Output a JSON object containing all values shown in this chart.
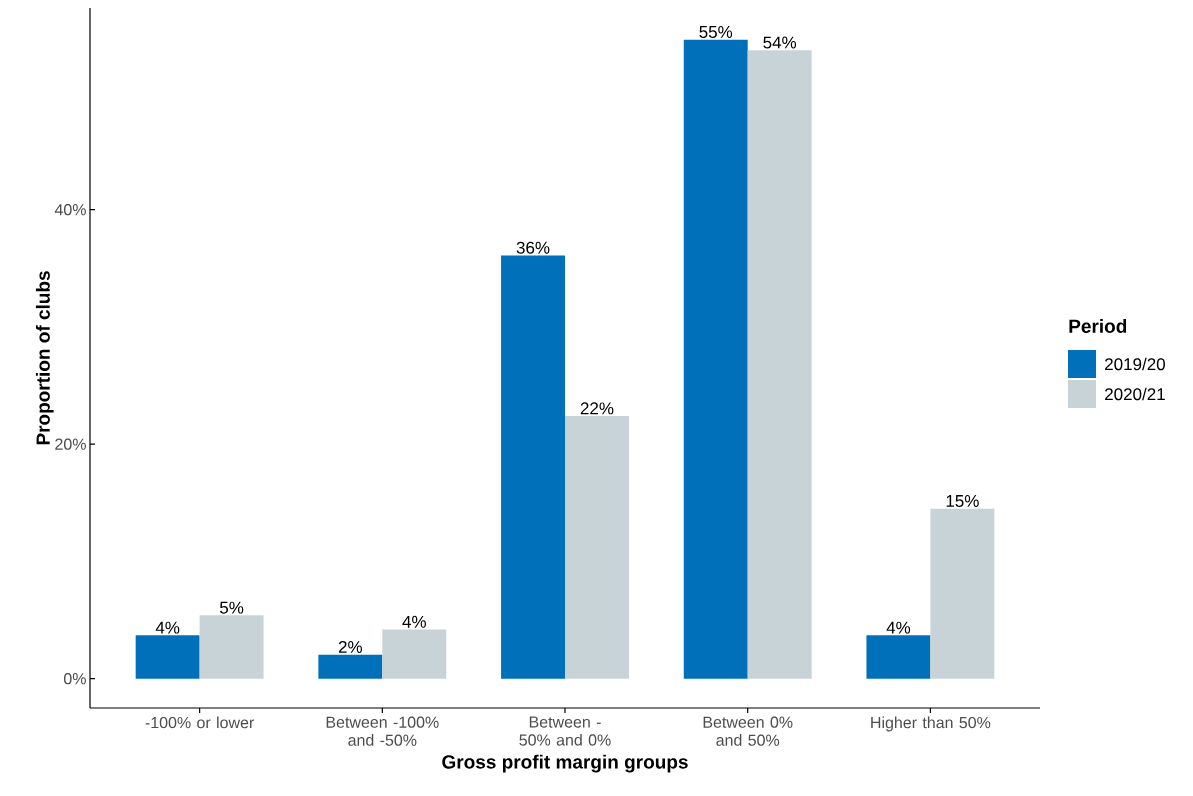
{
  "chart_data": {
    "type": "bar",
    "xlabel": "Gross profit margin groups",
    "ylabel": "Proportion of clubs",
    "legend_title": "Period",
    "categories": [
      "-100% or lower",
      "Between -100% and -50%",
      "Between -50% and 0%",
      "Between 0% and 50%",
      "Higher than 50%"
    ],
    "series": [
      {
        "name": "2019/20",
        "color": "#0070ba",
        "values": [
          3.7,
          2.05,
          36.1,
          54.5,
          3.7
        ],
        "value_labels": [
          "4%",
          "2%",
          "36%",
          "55%",
          "4%"
        ]
      },
      {
        "name": "2020/21",
        "color": "#c8d3d8",
        "values": [
          5.4,
          4.2,
          22.4,
          53.6,
          14.5
        ],
        "value_labels": [
          "5%",
          "4%",
          "22%",
          "54%",
          "15%"
        ]
      }
    ],
    "ylim": [
      -2.5,
      57.2
    ],
    "yticks": [
      {
        "value": 0,
        "label": "0%"
      },
      {
        "value": 20,
        "label": "20%"
      },
      {
        "value": 40,
        "label": "40%"
      }
    ],
    "grid": false,
    "legend": "right"
  }
}
